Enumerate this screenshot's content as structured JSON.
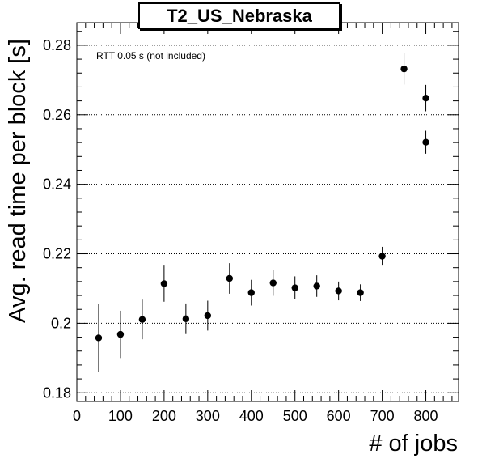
{
  "chart_data": {
    "type": "scatter",
    "title": "T2_US_Nebraska",
    "xlabel": "# of jobs",
    "ylabel": "Avg. read time per block [s]",
    "annotation": "RTT 0.05 s (not included)",
    "xlim": [
      0,
      875
    ],
    "ylim": [
      0.1775,
      0.2865
    ],
    "x_ticks": [
      "0",
      "100",
      "200",
      "300",
      "400",
      "500",
      "600",
      "700",
      "800"
    ],
    "y_ticks": [
      "0.18",
      "0.2",
      "0.22",
      "0.24",
      "0.26",
      "0.28"
    ],
    "grid": "horizontal-dotted",
    "legend": "none",
    "marker_color": "#000000",
    "series": [
      {
        "x": [
          50,
          100,
          150,
          200,
          250,
          300,
          350,
          400,
          450,
          500,
          550,
          600,
          650,
          700,
          750,
          800,
          800
        ],
        "y": [
          0.1958,
          0.1968,
          0.2011,
          0.2114,
          0.2013,
          0.2022,
          0.2129,
          0.2088,
          0.2116,
          0.2102,
          0.2107,
          0.2093,
          0.2088,
          0.2193,
          0.2732,
          0.2648,
          0.2521
        ],
        "y_err": [
          0.0098,
          0.0068,
          0.0057,
          0.0052,
          0.0044,
          0.0043,
          0.0044,
          0.0037,
          0.0037,
          0.0033,
          0.0031,
          0.0027,
          0.0024,
          0.0027,
          0.0045,
          0.0038,
          0.0033
        ]
      }
    ]
  }
}
